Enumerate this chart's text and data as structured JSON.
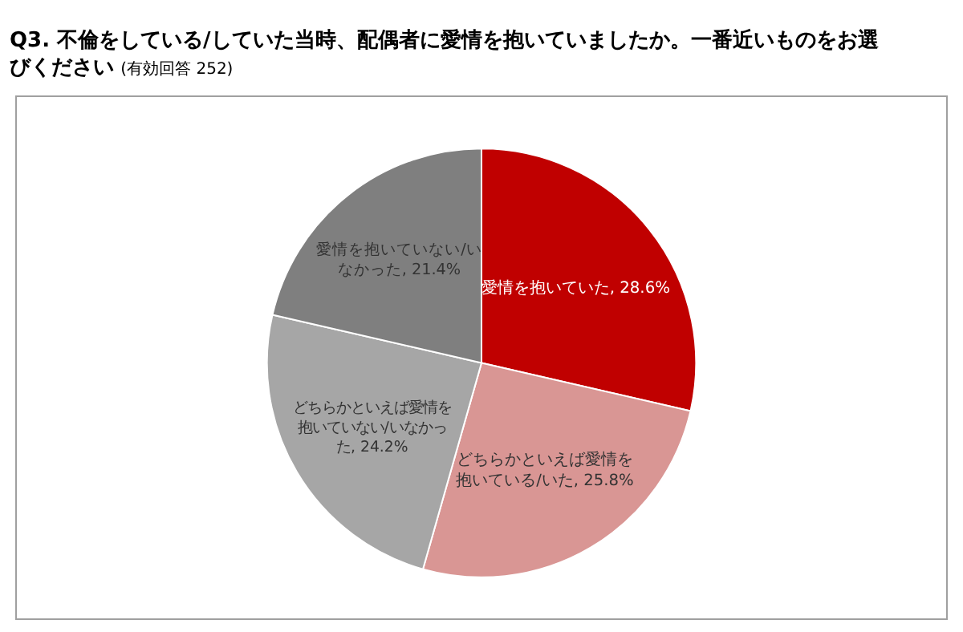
{
  "chart_data": {
    "type": "pie",
    "title": "Q3. 不倫をしている/していた当時、配偶者に愛情を抱いていましたか。一番近いものをお選びください",
    "subtitle": "(有効回答 252)",
    "categories": [
      "愛情を抱いていた",
      "どちらかといえば愛情を抱いている/いた",
      "どちらかといえば愛情を抱いていない/いなかった",
      "愛情を抱いていない/いなかった"
    ],
    "values": [
      28.6,
      25.8,
      24.2,
      21.4
    ],
    "value_labels": [
      "28.6%",
      "25.8%",
      "24.2%",
      "21.4%"
    ],
    "colors": [
      "#c00000",
      "#d99694",
      "#a6a6a6",
      "#7f7f7f"
    ],
    "legend": false
  }
}
